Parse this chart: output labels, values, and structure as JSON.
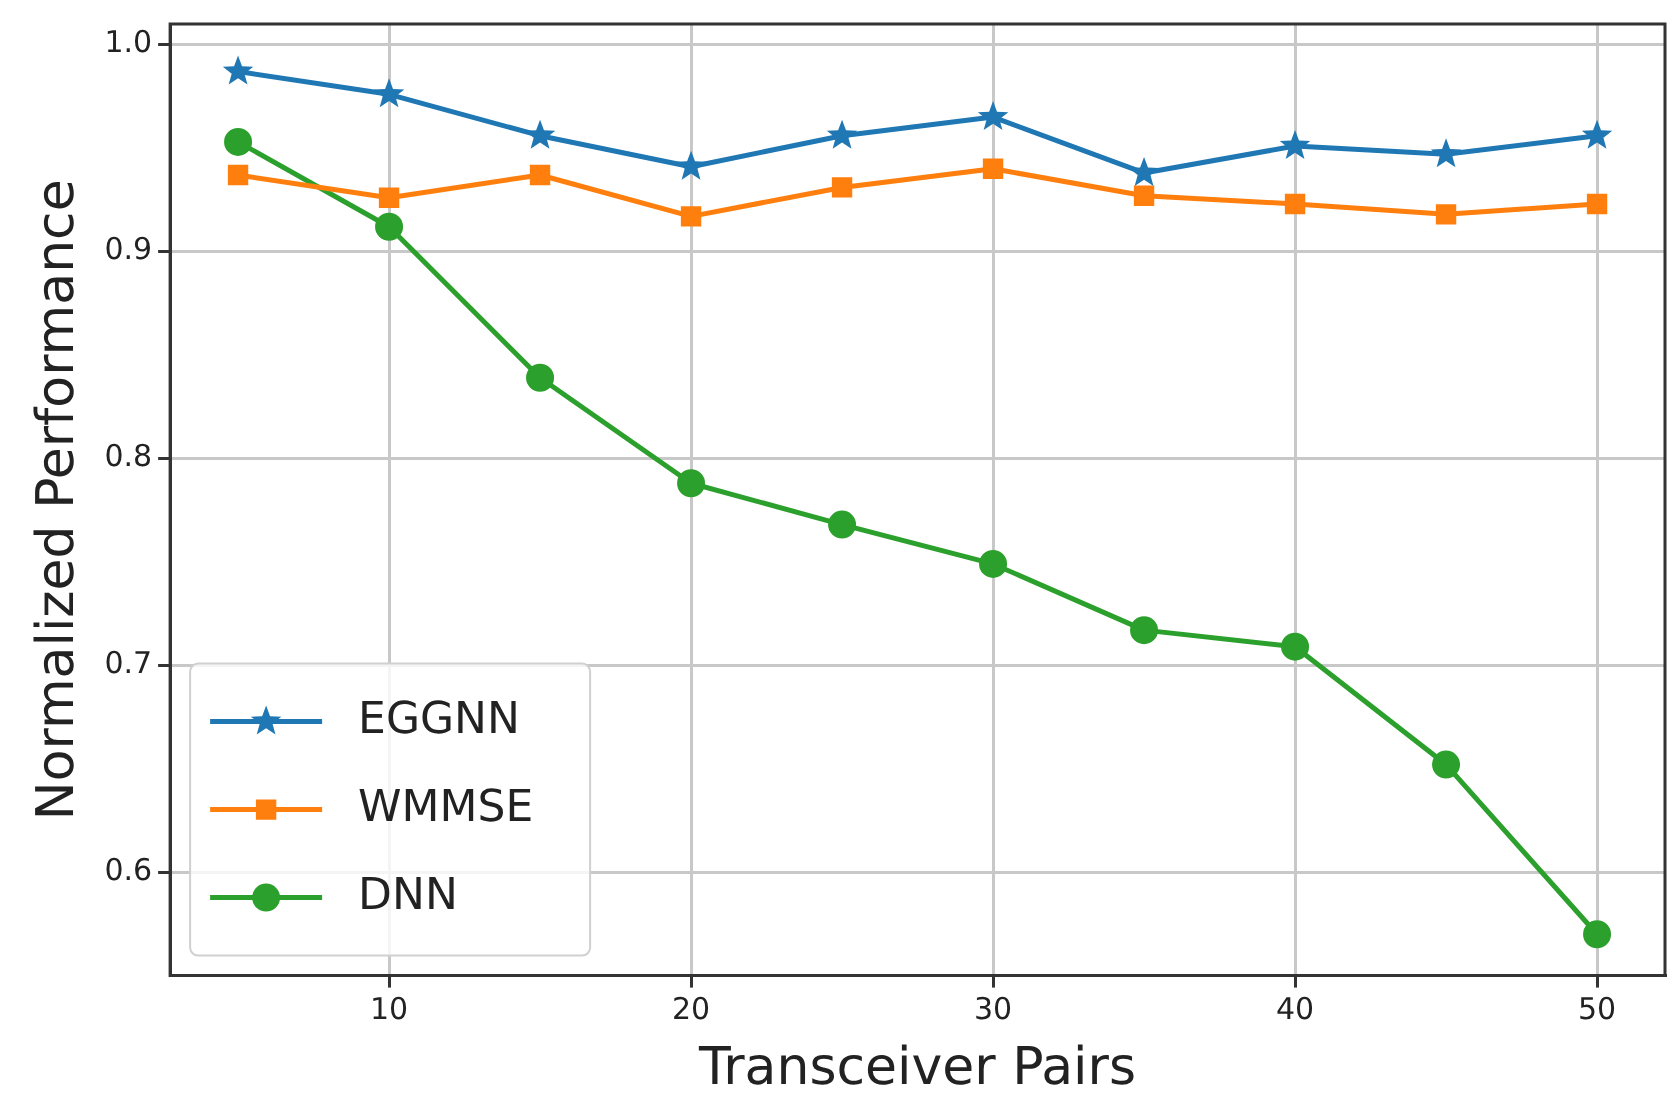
{
  "chart_data": {
    "type": "line",
    "xlabel": "Transceiver Pairs",
    "ylabel": "Normalized Performance",
    "x": [
      5,
      10,
      15,
      20,
      25,
      30,
      35,
      40,
      45,
      50
    ],
    "series": [
      {
        "name": "EGGNN",
        "color": "#1f77b4",
        "marker": "star",
        "values": [
          0.987,
          0.976,
          0.956,
          0.941,
          0.956,
          0.965,
          0.938,
          0.951,
          0.947,
          0.956
        ]
      },
      {
        "name": "WMMSE",
        "color": "#ff7f0e",
        "marker": "square",
        "values": [
          0.937,
          0.926,
          0.937,
          0.917,
          0.931,
          0.94,
          0.927,
          0.923,
          0.918,
          0.923
        ]
      },
      {
        "name": "DNN",
        "color": "#2ca02c",
        "marker": "circle",
        "values": [
          0.953,
          0.912,
          0.839,
          0.788,
          0.768,
          0.749,
          0.717,
          0.709,
          0.652,
          0.57
        ]
      }
    ],
    "xlim": [
      2.75,
      52.25
    ],
    "xticks": [
      10,
      20,
      30,
      40,
      50
    ],
    "ylim": [
      0.55,
      1.01
    ],
    "yticks": [
      0.6,
      0.7,
      0.8,
      0.9,
      {
        "value": 1,
        "label": "1.0"
      }
    ],
    "grid": true,
    "legend": "bottom left",
    "line_style": "solid"
  }
}
